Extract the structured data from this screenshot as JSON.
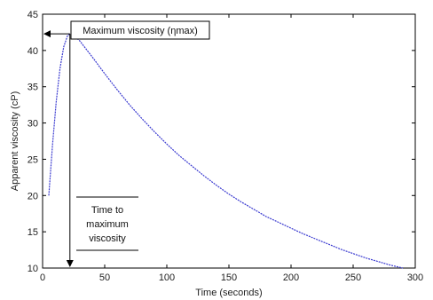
{
  "chart_data": {
    "type": "line",
    "title": "",
    "xlabel": "Time (seconds)",
    "ylabel": "Apparent viscosity (cP)",
    "xlim": [
      0,
      300
    ],
    "ylim": [
      10,
      45
    ],
    "xticks": [
      0,
      50,
      100,
      150,
      200,
      250,
      300
    ],
    "yticks": [
      10,
      15,
      20,
      25,
      30,
      35,
      40,
      45
    ],
    "grid": false,
    "series": [
      {
        "color": "#3a3ad0",
        "x": [
          5,
          8,
          11,
          14,
          17,
          20,
          22,
          25,
          30,
          40,
          50,
          60,
          70,
          80,
          90,
          100,
          110,
          120,
          130,
          140,
          150,
          160,
          170,
          180,
          190,
          200,
          210,
          220,
          230,
          240,
          250,
          260,
          270,
          280,
          290
        ],
        "y": [
          20,
          27,
          33,
          37.5,
          40.5,
          42,
          42.3,
          42.1,
          41.3,
          39.1,
          36.8,
          34.6,
          32.5,
          30.6,
          28.8,
          27.1,
          25.5,
          24.1,
          22.7,
          21.4,
          20.2,
          19.1,
          18.1,
          17.1,
          16.3,
          15.5,
          14.7,
          14.0,
          13.3,
          12.6,
          12.0,
          11.4,
          10.9,
          10.4,
          10.0
        ]
      }
    ],
    "annotations": [
      {
        "text": "Maximum viscosity (ηmax)"
      },
      {
        "lines": [
          "Time to",
          "maximum",
          "viscosity"
        ]
      }
    ]
  }
}
